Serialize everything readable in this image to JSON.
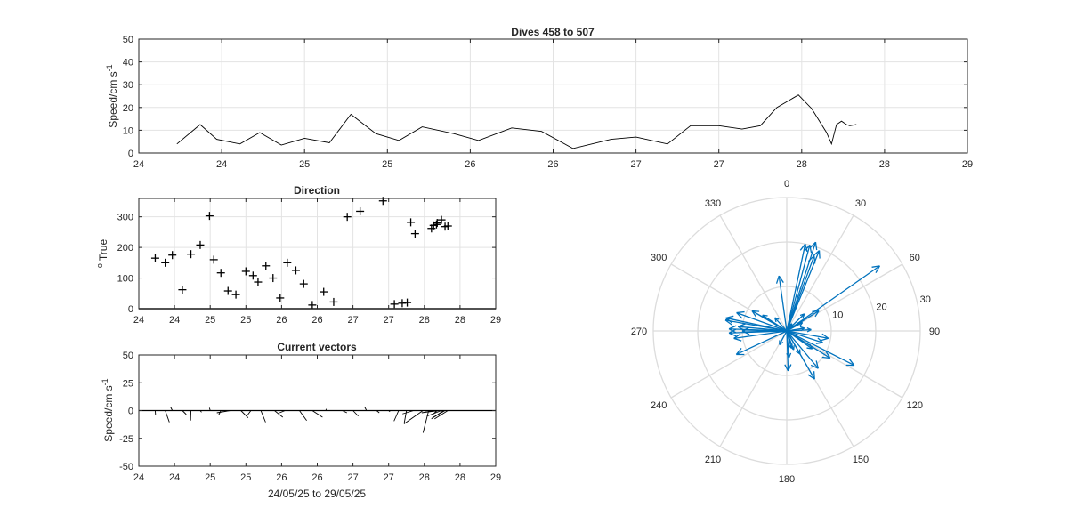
{
  "chart_data": [
    {
      "type": "line",
      "title": "Dives 458 to 507",
      "ylabel": "Speed/cm s",
      "ylabel_superscript": "-1",
      "xlim": [
        24,
        29
      ],
      "ylim": [
        0,
        50
      ],
      "xtick_labels": [
        "24",
        "24",
        "25",
        "25",
        "26",
        "26",
        "27",
        "27",
        "28",
        "28",
        "29"
      ],
      "yticks": [
        0,
        10,
        20,
        30,
        40,
        50
      ],
      "grid": true,
      "series": [
        {
          "x": [
            24.23,
            24.37,
            24.47,
            24.61,
            24.73,
            24.86,
            25.0,
            25.15,
            25.28,
            25.43,
            25.57,
            25.71,
            25.9,
            26.05,
            26.25,
            26.43,
            26.62,
            26.85,
            27.0,
            27.19,
            27.33,
            27.5,
            27.64,
            27.75,
            27.85,
            27.98,
            28.06,
            28.15,
            28.18,
            28.21,
            28.24,
            28.27,
            28.29,
            28.33
          ],
          "y": [
            4,
            12.5,
            6,
            4,
            9,
            3.5,
            6.5,
            4.5,
            17,
            8.5,
            5.5,
            11.5,
            8.5,
            5.5,
            11,
            9.5,
            2,
            6,
            7,
            4,
            12,
            12,
            10.5,
            12,
            20,
            25.5,
            19.5,
            9,
            4,
            12.5,
            14,
            12.5,
            12,
            12.5
          ]
        }
      ]
    },
    {
      "type": "scatter",
      "title": "Direction",
      "ylabel": "True",
      "ylabel_prefix": "o",
      "xlim": [
        24,
        29
      ],
      "ylim": [
        0,
        360
      ],
      "xtick_labels": [
        "24",
        "24",
        "25",
        "25",
        "26",
        "26",
        "27",
        "27",
        "28",
        "28",
        "29"
      ],
      "yticks": [
        0,
        100,
        200,
        300
      ],
      "grid": true,
      "marker": "+",
      "x": [
        24.23,
        24.37,
        24.47,
        24.61,
        24.73,
        24.86,
        24.99,
        25.05,
        25.15,
        25.25,
        25.36,
        25.5,
        25.6,
        25.67,
        25.78,
        25.88,
        25.98,
        26.08,
        26.2,
        26.31,
        26.43,
        26.59,
        26.73,
        26.92,
        27.1,
        27.42,
        27.58,
        27.69,
        27.76,
        27.81,
        27.87,
        28.1,
        28.13,
        28.17,
        28.18,
        28.24,
        28.29,
        28.33
      ],
      "y": [
        165,
        150,
        175,
        62,
        178,
        208,
        303,
        160,
        117,
        58,
        46,
        122,
        108,
        87,
        140,
        100,
        35,
        150,
        125,
        81,
        12,
        55,
        22,
        300,
        318,
        352,
        15,
        18,
        20,
        282,
        245,
        262,
        272,
        275,
        280,
        290,
        268,
        270
      ]
    },
    {
      "type": "quiver",
      "title": "Current vectors",
      "ylabel": "Speed/cm s",
      "ylabel_superscript": "-1",
      "xlabel": "24/05/25 to 29/05/25",
      "xlim": [
        24,
        29
      ],
      "ylim": [
        -50,
        50
      ],
      "xtick_labels": [
        "24",
        "24",
        "25",
        "25",
        "26",
        "26",
        "27",
        "27",
        "28",
        "28",
        "29"
      ],
      "yticks": [
        -50,
        -25,
        0,
        25,
        50
      ],
      "grid": false,
      "vectors": {
        "x": [
          24.23,
          24.37,
          24.47,
          24.61,
          24.73,
          24.86,
          25.0,
          25.15,
          25.28,
          25.43,
          25.57,
          25.71,
          25.9,
          26.05,
          26.25,
          26.43,
          26.62,
          26.85,
          27.0,
          27.19,
          27.33,
          27.5,
          27.64,
          27.75,
          27.85,
          27.98,
          28.06,
          28.15,
          28.18,
          28.21,
          28.24,
          28.27,
          28.29,
          28.33
        ],
        "u": [
          0.3,
          3.7,
          -1.5,
          3.5,
          -0.3,
          1.2,
          -0.7,
          -2,
          -12,
          6.5,
          -3,
          4.2,
          7.5,
          -5,
          6.5,
          9.2,
          0.4,
          4.2,
          4.8,
          -1.8,
          2.5,
          1.2,
          -4.2,
          -2,
          -10,
          -17,
          -5,
          -12,
          -4,
          -13,
          -13,
          -11,
          -11.5,
          -12
        ],
        "v": [
          -4,
          -10.5,
          3,
          -3.5,
          -9,
          -1.5,
          2.5,
          -4,
          -2,
          -6.5,
          -4,
          -10.5,
          -6,
          -2,
          -9,
          -6,
          1.5,
          -2,
          -5,
          3.5,
          -2,
          -1,
          -9.5,
          -11,
          -3,
          -12,
          -20,
          -2,
          -3.5,
          -1.5,
          -5,
          -7.5,
          -6.5,
          -7.5
        ]
      }
    },
    {
      "type": "compass",
      "title": "",
      "theta_labels": [
        "0",
        "30",
        "60",
        "90",
        "120",
        "150",
        "180",
        "210",
        "240",
        "270",
        "300",
        "330"
      ],
      "r_labels": [
        "10",
        "20",
        "30"
      ],
      "rlim": [
        0,
        30
      ],
      "color": "#0072BD",
      "arrows": {
        "direction_deg": [
          165,
          150,
          175,
          62,
          178,
          208,
          303,
          160,
          117,
          58,
          46,
          122,
          108,
          87,
          140,
          100,
          35,
          150,
          125,
          81,
          12,
          55,
          22,
          300,
          318,
          352,
          15,
          18,
          20,
          282,
          245,
          262,
          272,
          275,
          280,
          290,
          268,
          270
        ],
        "speed": [
          4,
          12.5,
          6,
          4,
          9,
          3.5,
          6.5,
          4.5,
          17,
          8.5,
          5.5,
          11.5,
          8.5,
          5.5,
          11,
          9.5,
          2,
          6,
          7,
          4,
          20,
          25.5,
          19.5,
          9,
          4,
          12.5,
          20,
          21,
          18,
          14,
          12.5,
          12,
          13,
          11,
          14,
          12,
          13,
          10
        ]
      }
    }
  ]
}
